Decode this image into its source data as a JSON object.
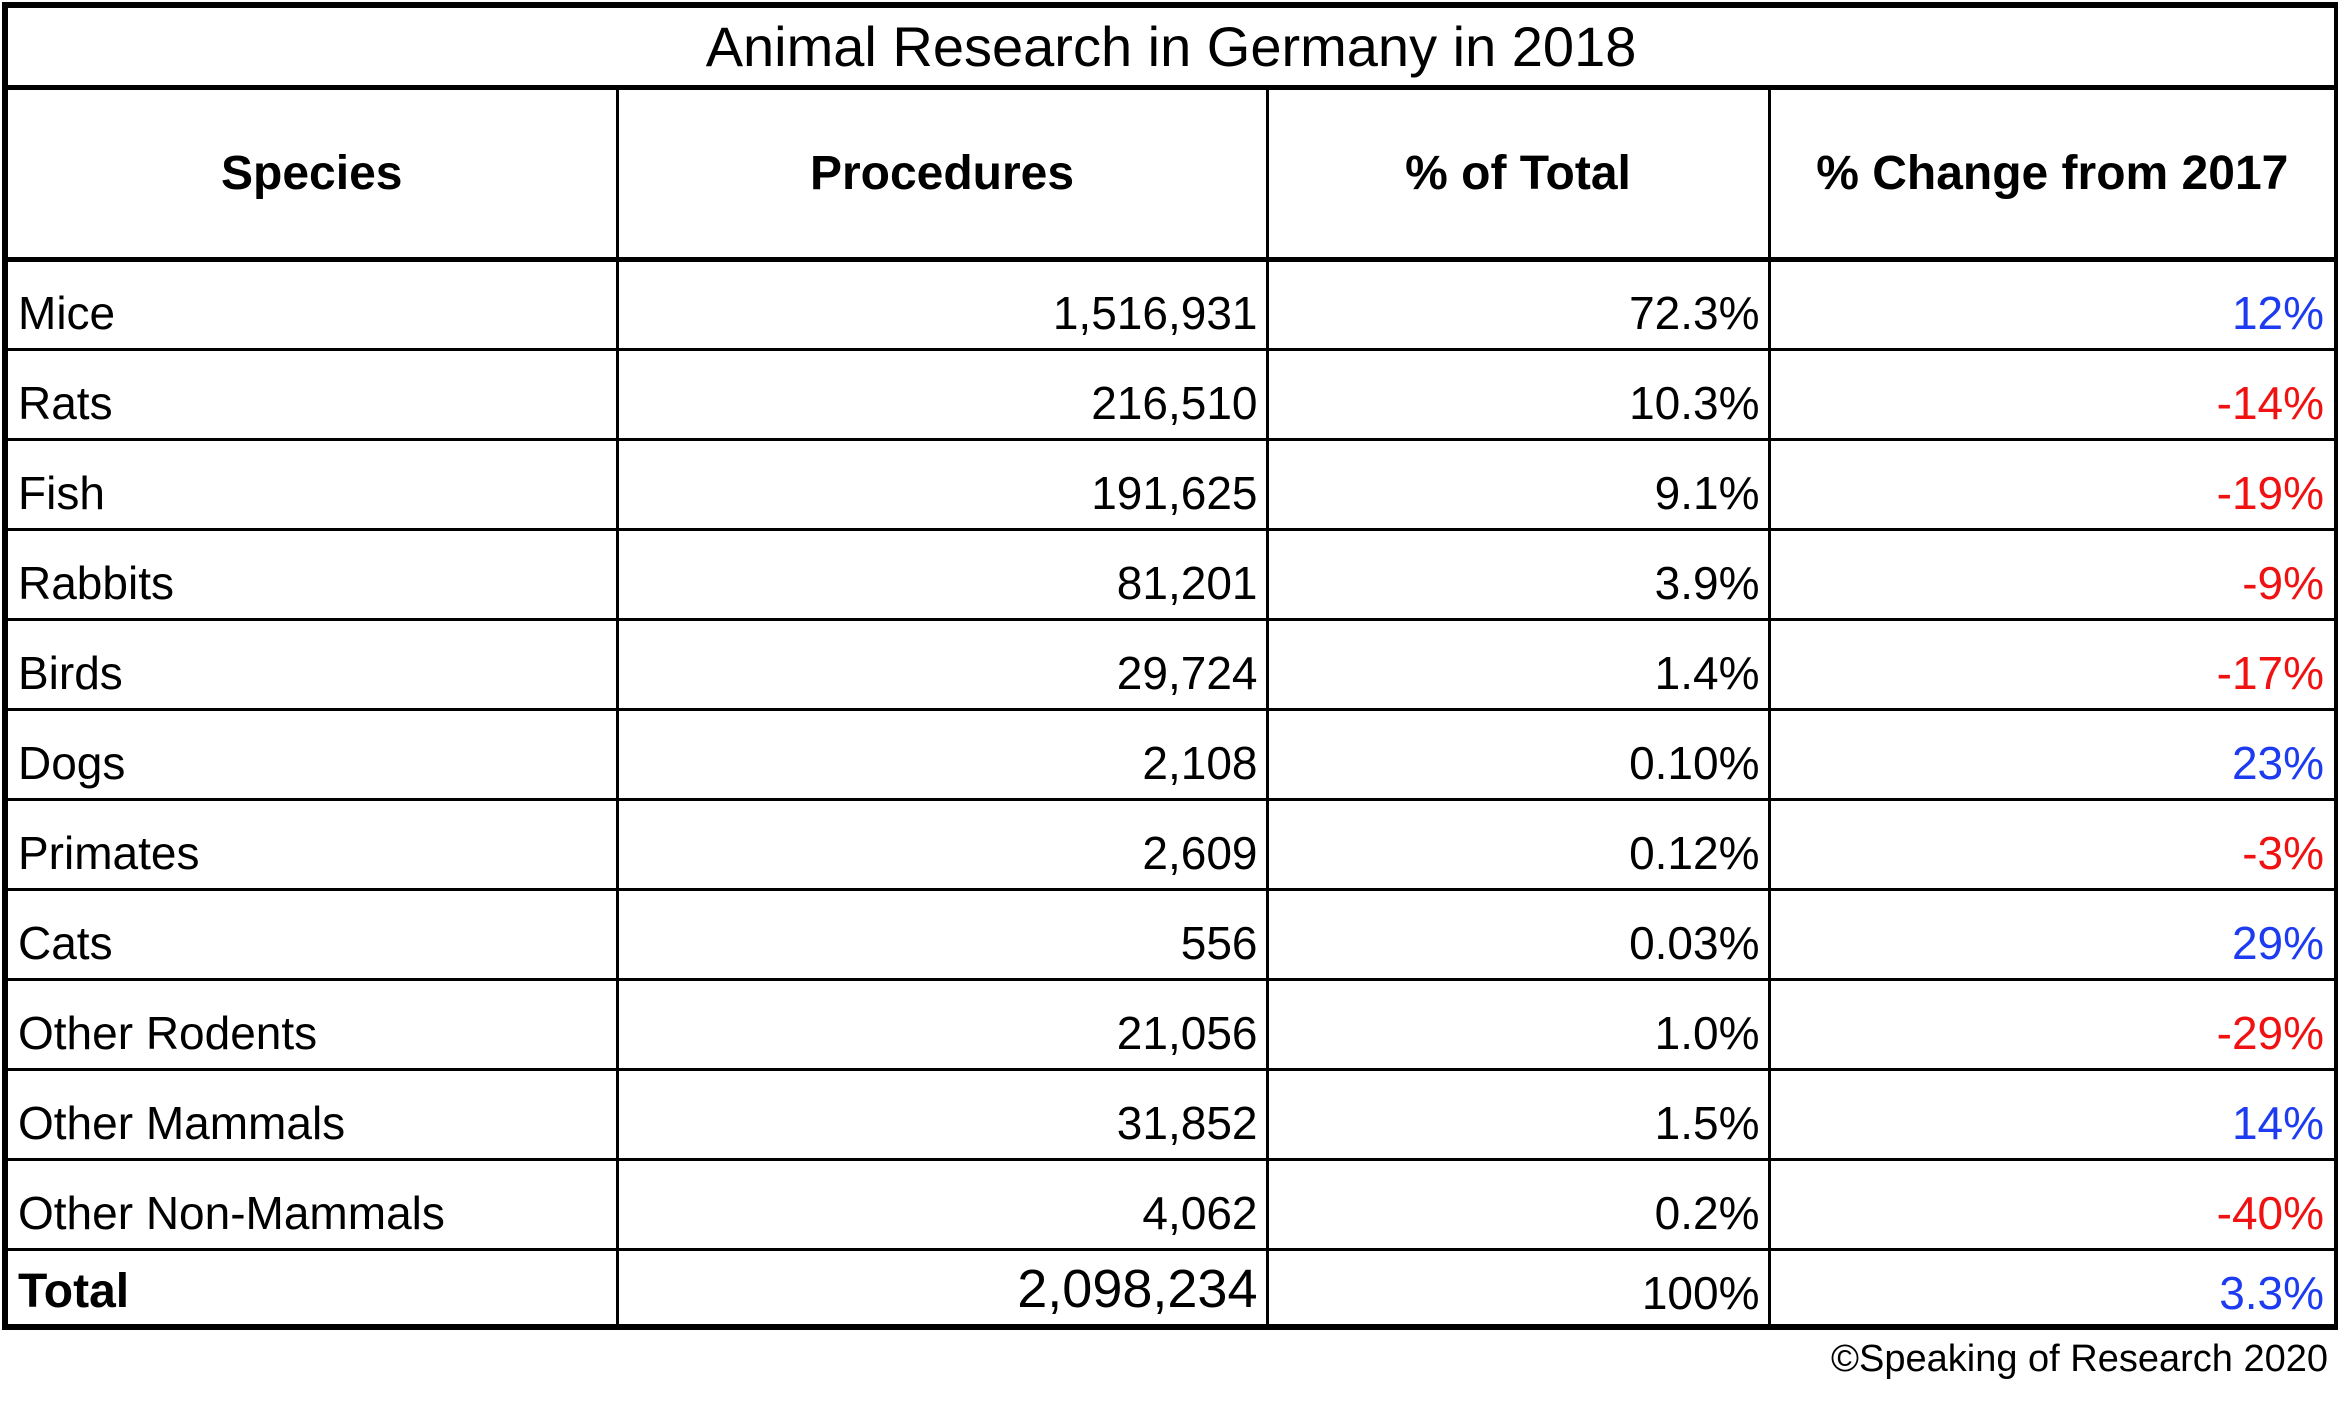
{
  "table": {
    "title": "Animal Research in Germany in 2018",
    "columns": [
      "Species",
      "Procedures",
      "% of Total",
      "% Change from 2017"
    ],
    "rows": [
      {
        "species": "Mice",
        "procedures": "1,516,931",
        "pct_of_total": "72.3%",
        "pct_change": "12%",
        "trend": "up"
      },
      {
        "species": "Rats",
        "procedures": "216,510",
        "pct_of_total": "10.3%",
        "pct_change": "-14%",
        "trend": "down"
      },
      {
        "species": "Fish",
        "procedures": "191,625",
        "pct_of_total": "9.1%",
        "pct_change": "-19%",
        "trend": "down"
      },
      {
        "species": "Rabbits",
        "procedures": "81,201",
        "pct_of_total": "3.9%",
        "pct_change": "-9%",
        "trend": "down"
      },
      {
        "species": "Birds",
        "procedures": "29,724",
        "pct_of_total": "1.4%",
        "pct_change": "-17%",
        "trend": "down"
      },
      {
        "species": "Dogs",
        "procedures": "2,108",
        "pct_of_total": "0.10%",
        "pct_change": "23%",
        "trend": "up"
      },
      {
        "species": "Primates",
        "procedures": "2,609",
        "pct_of_total": "0.12%",
        "pct_change": "-3%",
        "trend": "down"
      },
      {
        "species": "Cats",
        "procedures": "556",
        "pct_of_total": "0.03%",
        "pct_change": "29%",
        "trend": "up"
      },
      {
        "species": "Other Rodents",
        "procedures": "21,056",
        "pct_of_total": "1.0%",
        "pct_change": "-29%",
        "trend": "down"
      },
      {
        "species": "Other Mammals",
        "procedures": "31,852",
        "pct_of_total": "1.5%",
        "pct_change": "14%",
        "trend": "up"
      },
      {
        "species": "Other Non-Mammals",
        "procedures": "4,062",
        "pct_of_total": "0.2%",
        "pct_change": "-40%",
        "trend": "down"
      }
    ],
    "total": {
      "species": "Total",
      "procedures": "2,098,234",
      "pct_of_total": "100%",
      "pct_change": "3.3%",
      "trend": "up"
    }
  },
  "footer": {
    "credit": "©Speaking of Research 2020"
  },
  "colors": {
    "positive_change": "#1d3bf0",
    "negative_change": "#f01212",
    "text": "#000000",
    "border": "#000000",
    "background": "#ffffff"
  },
  "chart_data": {
    "type": "table",
    "title": "Animal Research in Germany in 2018",
    "columns": [
      "Species",
      "Procedures",
      "% of Total",
      "% Change from 2017"
    ],
    "rows": [
      [
        "Mice",
        1516931,
        "72.3%",
        "12%"
      ],
      [
        "Rats",
        216510,
        "10.3%",
        "-14%"
      ],
      [
        "Fish",
        191625,
        "9.1%",
        "-19%"
      ],
      [
        "Rabbits",
        81201,
        "3.9%",
        "-9%"
      ],
      [
        "Birds",
        29724,
        "1.4%",
        "-17%"
      ],
      [
        "Dogs",
        2108,
        "0.10%",
        "23%"
      ],
      [
        "Primates",
        2609,
        "0.12%",
        "-3%"
      ],
      [
        "Cats",
        556,
        "0.03%",
        "29%"
      ],
      [
        "Other Rodents",
        21056,
        "1.0%",
        "-29%"
      ],
      [
        "Other Mammals",
        31852,
        "1.5%",
        "14%"
      ],
      [
        "Other Non-Mammals",
        4062,
        "0.2%",
        "-40%"
      ]
    ],
    "total_row": [
      "Total",
      2098234,
      "100%",
      "3.3%"
    ],
    "annotations": "Positive % change values rendered in blue, negative values in red",
    "credit": "©Speaking of Research 2020"
  }
}
